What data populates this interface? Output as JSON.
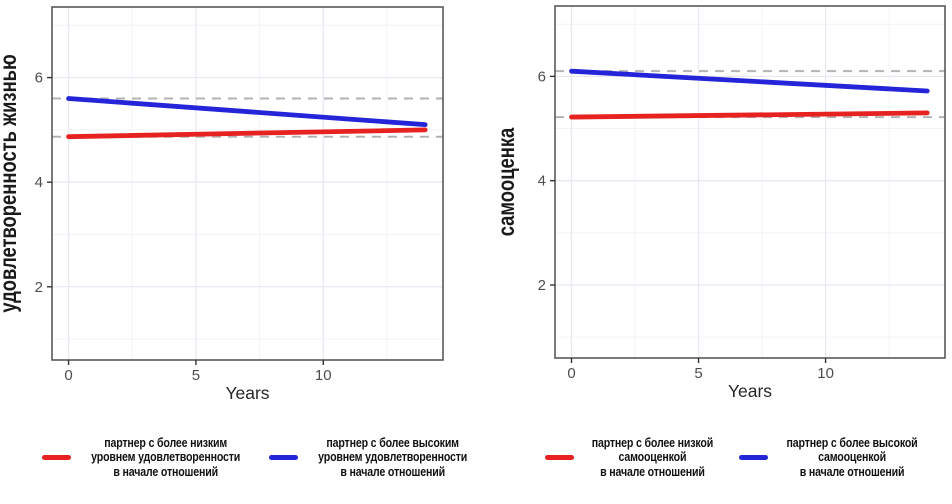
{
  "style": {
    "background": "#ffffff",
    "panel_fill": "#ffffff",
    "panel_border": "#595959",
    "grid_major": "#eae7f0",
    "grid_minor": "#f4f2f7",
    "reference_line": "#b3b3b3",
    "tick_color": "#333333",
    "tick_label_color": "#4d4d4d",
    "axis_title_color": "#262626",
    "ylabel_color": "#1a1a1a",
    "red": "#e62320",
    "blue": "#2424d8"
  },
  "chart_data": [
    {
      "type": "line",
      "title": "",
      "ylabel": "удовлетворенность жизнью",
      "xlabel": "Years",
      "xticks": [
        0,
        5,
        10
      ],
      "yticks": [
        2,
        4,
        6
      ],
      "x_minor": [
        2.5,
        7.5,
        12.5
      ],
      "y_minor": [
        1,
        3,
        5,
        7
      ],
      "xlim": [
        -0.65,
        14.7
      ],
      "ylim": [
        0.6,
        7.35
      ],
      "grid": true,
      "legend_position": "bottom",
      "series": [
        {
          "name": "партнер с более низким уровнем удовлетворенности в начале отношений",
          "color_key": "red",
          "x": [
            0,
            14
          ],
          "y": [
            4.87,
            5.0
          ]
        },
        {
          "name": "партнер с более высоким уровнем удовлетворенности в начале отношений",
          "color_key": "blue",
          "x": [
            0,
            14
          ],
          "y": [
            5.6,
            5.1
          ]
        }
      ],
      "reference_lines": [
        {
          "y": 5.6,
          "style": "dashed"
        },
        {
          "y": 4.87,
          "style": "dashed"
        }
      ],
      "legend": [
        {
          "color_key": "red",
          "lines": [
            "партнер с более низким",
            "уровнем удовлетворенности",
            "в начале отношений"
          ]
        },
        {
          "color_key": "blue",
          "lines": [
            "партнер с более высоким",
            "уровнем удовлетворенности",
            "в начале отношений"
          ]
        }
      ]
    },
    {
      "type": "line",
      "title": "",
      "ylabel": "самооценка",
      "xlabel": "Years",
      "xticks": [
        0,
        5,
        10
      ],
      "yticks": [
        2,
        4,
        6
      ],
      "x_minor": [
        2.5,
        7.5,
        12.5
      ],
      "y_minor": [
        1,
        3,
        5,
        7
      ],
      "xlim": [
        -0.65,
        14.7
      ],
      "ylim": [
        0.6,
        7.35
      ],
      "grid": true,
      "legend_position": "bottom",
      "series": [
        {
          "name": "партнер с более низкой самооценкой в начале отношений",
          "color_key": "red",
          "x": [
            0,
            14
          ],
          "y": [
            5.22,
            5.3
          ]
        },
        {
          "name": "партнер с более высокой самооценкой в начале отношений",
          "color_key": "blue",
          "x": [
            0,
            14
          ],
          "y": [
            6.1,
            5.72
          ]
        }
      ],
      "reference_lines": [
        {
          "y": 6.1,
          "style": "dashed"
        },
        {
          "y": 5.22,
          "style": "dashed"
        }
      ],
      "legend": [
        {
          "color_key": "red",
          "lines": [
            "партнер с более низкой",
            "самооценкой",
            "в начале отношений"
          ]
        },
        {
          "color_key": "blue",
          "lines": [
            "партнер с более высокой",
            "самооценкой",
            "в начале отношений"
          ]
        }
      ]
    }
  ]
}
